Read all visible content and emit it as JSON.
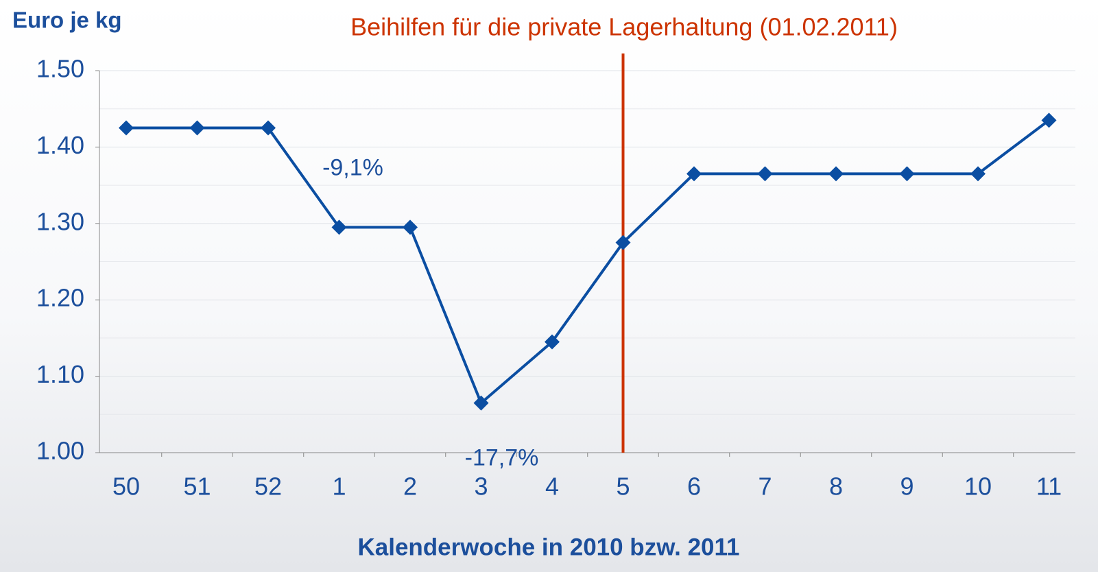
{
  "chart_data": {
    "type": "line",
    "ylabel": "Euro je kg",
    "xlabel": "Kalenderwoche in 2010 bzw. 2011",
    "categories": [
      "50",
      "51",
      "52",
      "1",
      "2",
      "3",
      "4",
      "5",
      "6",
      "7",
      "8",
      "9",
      "10",
      "11"
    ],
    "values": [
      1.425,
      1.425,
      1.425,
      1.295,
      1.295,
      1.065,
      1.145,
      1.275,
      1.365,
      1.365,
      1.365,
      1.365,
      1.365,
      1.435
    ],
    "color": "#0b4ea2",
    "ylim": [
      1.0,
      1.5
    ],
    "yticks": [
      {
        "value": 1.0,
        "label": "1.00"
      },
      {
        "value": 1.1,
        "label": "1.10"
      },
      {
        "value": 1.2,
        "label": "1.20"
      },
      {
        "value": 1.3,
        "label": "1.30"
      },
      {
        "value": 1.4,
        "label": "1.40"
      },
      {
        "value": 1.5,
        "label": "1.50"
      }
    ],
    "minor_yticks": [
      1.05,
      1.15,
      1.25,
      1.35,
      1.45
    ],
    "grid": true,
    "event": {
      "label": "Beihilfen für die private Lagerhaltung (01.02.2011)",
      "category": "5",
      "color": "#cc3300"
    },
    "annotations": [
      {
        "text": "-9,1%",
        "category": "1"
      },
      {
        "text": "-17,7%",
        "category": "3"
      }
    ]
  }
}
